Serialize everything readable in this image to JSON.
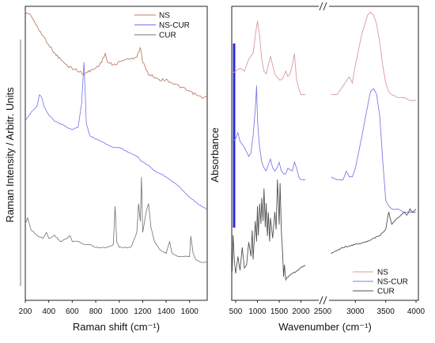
{
  "chart_data": [
    {
      "type": "line",
      "panel": "left",
      "xlabel": "Raman shift (cm⁻¹)",
      "ylabel": "Raman Intensity / Arbitr. Units",
      "xlim": [
        200,
        1750
      ],
      "x_ticks": [
        200,
        400,
        600,
        800,
        1000,
        1200,
        1400,
        1600
      ],
      "legend": {
        "position": "top-right"
      },
      "colors": {
        "NS": "#b8826a",
        "NS-CUR": "#6f72ee",
        "CUR": "#707070"
      },
      "series": [
        {
          "name": "NS",
          "x": [
            200,
            250,
            300,
            350,
            400,
            450,
            500,
            550,
            600,
            650,
            700,
            750,
            800,
            850,
            880,
            900,
            950,
            1000,
            1050,
            1100,
            1150,
            1180,
            1200,
            1250,
            1300,
            1350,
            1400,
            1450,
            1500,
            1550,
            1600,
            1650,
            1700,
            1750
          ],
          "y": [
            0.98,
            0.97,
            0.93,
            0.9,
            0.87,
            0.84,
            0.82,
            0.8,
            0.79,
            0.78,
            0.77,
            0.78,
            0.79,
            0.81,
            0.84,
            0.81,
            0.8,
            0.81,
            0.82,
            0.82,
            0.83,
            0.86,
            0.81,
            0.77,
            0.76,
            0.75,
            0.75,
            0.74,
            0.73,
            0.72,
            0.71,
            0.7,
            0.69,
            0.69
          ]
        },
        {
          "name": "NS-CUR",
          "x": [
            200,
            250,
            300,
            320,
            340,
            360,
            400,
            450,
            500,
            550,
            600,
            650,
            680,
            700,
            720,
            750,
            800,
            850,
            900,
            950,
            1000,
            1050,
            1100,
            1150,
            1200,
            1250,
            1300,
            1400,
            1500,
            1600,
            1700,
            1750
          ],
          "y": [
            0.61,
            0.64,
            0.66,
            0.7,
            0.69,
            0.66,
            0.63,
            0.61,
            0.6,
            0.59,
            0.58,
            0.59,
            0.67,
            0.81,
            0.6,
            0.56,
            0.55,
            0.54,
            0.53,
            0.52,
            0.52,
            0.51,
            0.5,
            0.49,
            0.47,
            0.46,
            0.44,
            0.42,
            0.39,
            0.35,
            0.32,
            0.31
          ]
        },
        {
          "name": "CUR",
          "x": [
            200,
            220,
            250,
            300,
            350,
            380,
            400,
            450,
            500,
            550,
            580,
            600,
            650,
            700,
            750,
            800,
            850,
            900,
            950,
            965,
            980,
            1000,
            1050,
            1100,
            1150,
            1165,
            1180,
            1190,
            1200,
            1230,
            1250,
            1270,
            1300,
            1350,
            1400,
            1430,
            1450,
            1500,
            1550,
            1600,
            1610,
            1630,
            1650,
            1700,
            1750
          ],
          "y": [
            0.26,
            0.28,
            0.24,
            0.22,
            0.21,
            0.23,
            0.21,
            0.22,
            0.2,
            0.21,
            0.22,
            0.2,
            0.2,
            0.19,
            0.19,
            0.18,
            0.18,
            0.18,
            0.19,
            0.32,
            0.2,
            0.18,
            0.18,
            0.18,
            0.23,
            0.33,
            0.27,
            0.42,
            0.23,
            0.3,
            0.33,
            0.25,
            0.2,
            0.17,
            0.16,
            0.2,
            0.16,
            0.15,
            0.15,
            0.15,
            0.22,
            0.16,
            0.14,
            0.13,
            0.13
          ]
        }
      ]
    },
    {
      "type": "line",
      "panel": "right",
      "xlabel": "Wavenumber (cm⁻¹)",
      "ylabel": "Absorbance",
      "x_ticks": [
        500,
        1000,
        1500,
        2000,
        2500,
        3000,
        3500,
        4000
      ],
      "axis_break": "between 2500 and 2600",
      "legend": {
        "position": "bottom-right"
      },
      "colors": {
        "NS": "#d99a9a",
        "NS-CUR": "#7c7ce8",
        "CUR": "#505050"
      },
      "series": [
        {
          "name": "NS",
          "x": [
            420,
            500,
            600,
            700,
            800,
            900,
            950,
            1000,
            1050,
            1100,
            1150,
            1200,
            1250,
            1300,
            1350,
            1400,
            1450,
            1500,
            1550,
            1600,
            1650,
            1700,
            1750,
            1800,
            1850,
            1900,
            1950,
            2000,
            2050,
            2100
          ],
          "y": [
            0.77,
            0.78,
            0.79,
            0.78,
            0.82,
            0.84,
            0.9,
            0.95,
            0.9,
            0.82,
            0.78,
            0.77,
            0.8,
            0.83,
            0.8,
            0.77,
            0.76,
            0.75,
            0.75,
            0.76,
            0.78,
            0.76,
            0.77,
            0.8,
            0.84,
            0.75,
            0.72,
            0.7,
            0.7,
            0.7
          ]
        },
        {
          "name": "NS",
          "x": [
            2600,
            2700,
            2800,
            2900,
            2950,
            3000,
            3100,
            3200,
            3250,
            3300,
            3350,
            3400,
            3450,
            3500,
            3550,
            3600,
            3700,
            3800,
            3900,
            4000
          ],
          "y": [
            0.7,
            0.7,
            0.73,
            0.76,
            0.74,
            0.8,
            0.9,
            0.97,
            0.98,
            0.97,
            0.94,
            0.88,
            0.8,
            0.74,
            0.71,
            0.7,
            0.69,
            0.69,
            0.68,
            0.68
          ]
        },
        {
          "name": "NS-CUR",
          "x": [
            420,
            500,
            550,
            600,
            700,
            800,
            850,
            900,
            950,
            980,
            1000,
            1020,
            1050,
            1100,
            1150,
            1200,
            1250,
            1300,
            1350,
            1400,
            1450,
            1500,
            1550,
            1600,
            1650,
            1700,
            1800,
            1850,
            1900,
            1950,
            2000,
            2100
          ],
          "y": [
            0.54,
            0.55,
            0.57,
            0.54,
            0.52,
            0.49,
            0.5,
            0.56,
            0.65,
            0.73,
            0.62,
            0.57,
            0.52,
            0.47,
            0.45,
            0.44,
            0.46,
            0.48,
            0.45,
            0.44,
            0.45,
            0.47,
            0.44,
            0.43,
            0.43,
            0.45,
            0.44,
            0.47,
            0.45,
            0.42,
            0.41,
            0.41
          ]
        },
        {
          "name": "NS-CUR",
          "x": [
            2600,
            2700,
            2800,
            2850,
            2900,
            2950,
            3000,
            3100,
            3200,
            3250,
            3300,
            3350,
            3400,
            3450,
            3500,
            3550,
            3600,
            3700,
            3800,
            3900,
            4000
          ],
          "y": [
            0.42,
            0.41,
            0.41,
            0.44,
            0.42,
            0.42,
            0.45,
            0.55,
            0.66,
            0.71,
            0.72,
            0.7,
            0.63,
            0.48,
            0.34,
            0.32,
            0.31,
            0.31,
            0.3,
            0.3,
            0.3
          ]
        },
        {
          "name": "CUR",
          "x": [
            420,
            440,
            470,
            500,
            550,
            600,
            650,
            700,
            750,
            800,
            850,
            880,
            900,
            950,
            980,
            1000,
            1020,
            1050,
            1080,
            1100,
            1130,
            1150,
            1180,
            1200,
            1230,
            1250,
            1280,
            1300,
            1350,
            1400,
            1430,
            1460,
            1500,
            1520,
            1550,
            1580,
            1600,
            1620,
            1650,
            1700,
            1800,
            1900,
            2000,
            2100
          ],
          "y": [
            0.1,
            0.22,
            0.13,
            0.09,
            0.15,
            0.1,
            0.18,
            0.11,
            0.12,
            0.2,
            0.15,
            0.24,
            0.14,
            0.27,
            0.2,
            0.32,
            0.22,
            0.33,
            0.26,
            0.35,
            0.27,
            0.38,
            0.25,
            0.33,
            0.22,
            0.3,
            0.2,
            0.28,
            0.21,
            0.3,
            0.24,
            0.41,
            0.26,
            0.4,
            0.23,
            0.16,
            0.08,
            0.12,
            0.07,
            0.08,
            0.09,
            0.1,
            0.11,
            0.12
          ]
        },
        {
          "name": "CUR",
          "x": [
            2600,
            2800,
            3000,
            3200,
            3400,
            3500,
            3550,
            3600,
            3650,
            3700,
            3750,
            3800,
            3850,
            3900,
            3950,
            4000
          ],
          "y": [
            0.16,
            0.18,
            0.19,
            0.2,
            0.22,
            0.24,
            0.3,
            0.26,
            0.27,
            0.28,
            0.29,
            0.3,
            0.29,
            0.31,
            0.3,
            0.31
          ]
        }
      ]
    }
  ]
}
